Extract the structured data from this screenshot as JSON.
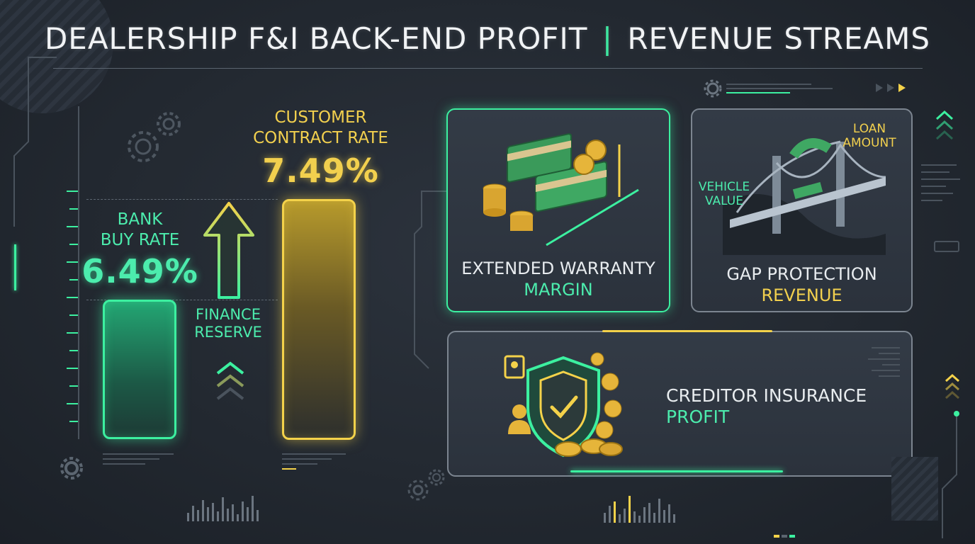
{
  "title": {
    "part1": "DEALERSHIP F&I BACK-END PROFIT",
    "separator": "|",
    "part2": "REVENUE STREAMS"
  },
  "rate_chart": {
    "bank_buy_rate": {
      "label_line1": "BANK",
      "label_line2": "BUY RATE",
      "value": "6.49%"
    },
    "customer_contract_rate": {
      "label_line1": "CUSTOMER",
      "label_line2": "CONTRACT RATE",
      "value": "7.49%"
    },
    "finance_reserve": {
      "label_line1": "FINANCE",
      "label_line2": "RESERVE"
    },
    "colors": {
      "green": "#3cf0a0",
      "yellow": "#f4d24a"
    }
  },
  "cards": {
    "extended_warranty": {
      "line1": "EXTENDED WARRANTY",
      "line2": "MARGIN"
    },
    "gap_protection": {
      "line1": "GAP PROTECTION",
      "line2": "REVENUE",
      "loan_amount_line1": "LOAN",
      "loan_amount_line2": "AMOUNT",
      "vehicle_value_line1": "VEHICLE",
      "vehicle_value_line2": "VALUE"
    },
    "creditor_insurance": {
      "line1": "CREDITOR INSURANCE",
      "line2": "PROFIT"
    }
  },
  "icons": [
    "money-stack-icon",
    "coin-stack-icon",
    "bridge-icon",
    "shield-check-icon",
    "person-icon",
    "gear-icon",
    "chevron-up-icon",
    "play-arrow-icon"
  ]
}
